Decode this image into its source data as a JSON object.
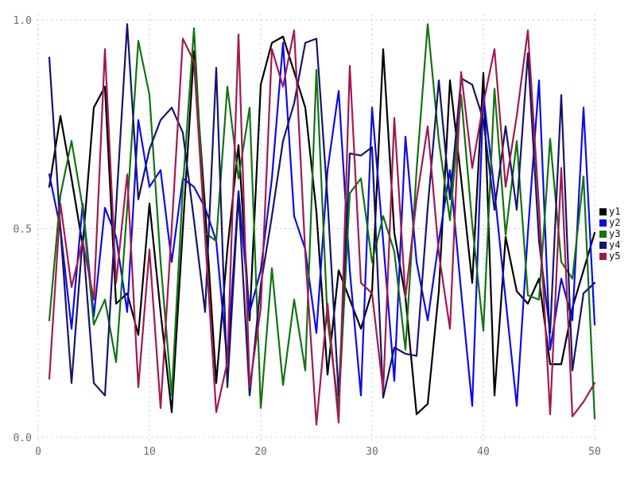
{
  "chart_data": {
    "type": "line",
    "title": "",
    "xlabel": "",
    "ylabel": "",
    "x_start": 1,
    "xlim": [
      0,
      50
    ],
    "ylim": [
      0.0,
      1.0
    ],
    "xticks": [
      0,
      10,
      20,
      30,
      40,
      50
    ],
    "xtick_labels": [
      "0",
      "10",
      "20",
      "30",
      "40",
      "50"
    ],
    "yticks": [
      0.0,
      0.5,
      1.0
    ],
    "ytick_labels": [
      "0.0",
      "0.5",
      "1.0"
    ],
    "grid": "dashed",
    "legend_position": "right-outside",
    "series": [
      {
        "name": "y1",
        "color": "#000000",
        "values": [
          0.6,
          0.77,
          0.62,
          0.46,
          0.79,
          0.84,
          0.32,
          0.345,
          0.245,
          0.56,
          0.3,
          0.06,
          0.5,
          0.925,
          0.55,
          0.13,
          0.45,
          0.7,
          0.28,
          0.845,
          0.945,
          0.96,
          0.875,
          0.79,
          0.54,
          0.15,
          0.4,
          0.33,
          0.26,
          0.35,
          0.93,
          0.49,
          0.335,
          0.055,
          0.08,
          0.35,
          0.855,
          0.62,
          0.37,
          0.873,
          0.1,
          0.48,
          0.35,
          0.32,
          0.38,
          0.175,
          0.175,
          0.31,
          0.4,
          0.49
        ]
      },
      {
        "name": "y2",
        "color": "#0b0bea",
        "values": [
          0.63,
          0.5,
          0.26,
          0.56,
          0.29,
          0.55,
          0.48,
          0.3,
          0.76,
          0.6,
          0.64,
          0.42,
          0.62,
          0.6,
          0.55,
          0.47,
          0.18,
          0.59,
          0.3,
          0.4,
          0.62,
          0.945,
          0.53,
          0.45,
          0.25,
          0.64,
          0.83,
          0.4,
          0.1,
          0.79,
          0.47,
          0.135,
          0.72,
          0.42,
          0.28,
          0.47,
          0.64,
          0.35,
          0.075,
          0.82,
          0.59,
          0.33,
          0.075,
          0.49,
          0.855,
          0.21,
          0.38,
          0.28,
          0.79,
          0.27
        ]
      },
      {
        "name": "y3",
        "color": "#127312",
        "values": [
          0.28,
          0.58,
          0.71,
          0.55,
          0.27,
          0.33,
          0.18,
          0.55,
          0.95,
          0.82,
          0.42,
          0.1,
          0.6,
          0.98,
          0.49,
          0.47,
          0.84,
          0.62,
          0.79,
          0.07,
          0.405,
          0.125,
          0.33,
          0.16,
          0.88,
          0.28,
          0.07,
          0.585,
          0.62,
          0.42,
          0.53,
          0.445,
          0.21,
          0.64,
          0.99,
          0.71,
          0.52,
          0.82,
          0.51,
          0.255,
          0.835,
          0.485,
          0.71,
          0.34,
          0.33,
          0.715,
          0.42,
          0.38,
          0.625,
          0.045
        ]
      },
      {
        "name": "y4",
        "color": "#15156b",
        "values": [
          0.91,
          0.5,
          0.13,
          0.48,
          0.13,
          0.1,
          0.55,
          0.99,
          0.57,
          0.69,
          0.76,
          0.79,
          0.73,
          0.52,
          0.3,
          0.885,
          0.12,
          0.58,
          0.1,
          0.365,
          0.53,
          0.71,
          0.8,
          0.945,
          0.955,
          0.57,
          0.1,
          0.68,
          0.675,
          0.695,
          0.095,
          0.215,
          0.2,
          0.195,
          0.55,
          0.855,
          0.57,
          0.86,
          0.845,
          0.76,
          0.545,
          0.745,
          0.545,
          0.92,
          0.47,
          0.25,
          0.82,
          0.16,
          0.345,
          0.37
        ]
      },
      {
        "name": "y5",
        "color": "#a01a52",
        "values": [
          0.14,
          0.56,
          0.36,
          0.47,
          0.33,
          0.93,
          0.37,
          0.63,
          0.12,
          0.45,
          0.07,
          0.5,
          0.955,
          0.9,
          0.48,
          0.06,
          0.18,
          0.965,
          0.12,
          0.31,
          0.93,
          0.84,
          0.975,
          0.44,
          0.03,
          0.32,
          0.035,
          0.89,
          0.37,
          0.345,
          0.11,
          0.765,
          0.335,
          0.57,
          0.745,
          0.44,
          0.26,
          0.875,
          0.645,
          0.8,
          0.93,
          0.6,
          0.77,
          0.975,
          0.55,
          0.055,
          0.645,
          0.05,
          0.085,
          0.13
        ]
      }
    ]
  },
  "legend": {
    "entries": [
      {
        "label": "y1",
        "color": "#000000"
      },
      {
        "label": "y2",
        "color": "#0b0bea"
      },
      {
        "label": "y3",
        "color": "#127312"
      },
      {
        "label": "y4",
        "color": "#15156b"
      },
      {
        "label": "y5",
        "color": "#a01a52"
      }
    ]
  },
  "colors": {
    "background": "#ffffff",
    "grid": "#c9c9da",
    "tick_label": "#6e6e6e",
    "legend_text": "#111111"
  }
}
